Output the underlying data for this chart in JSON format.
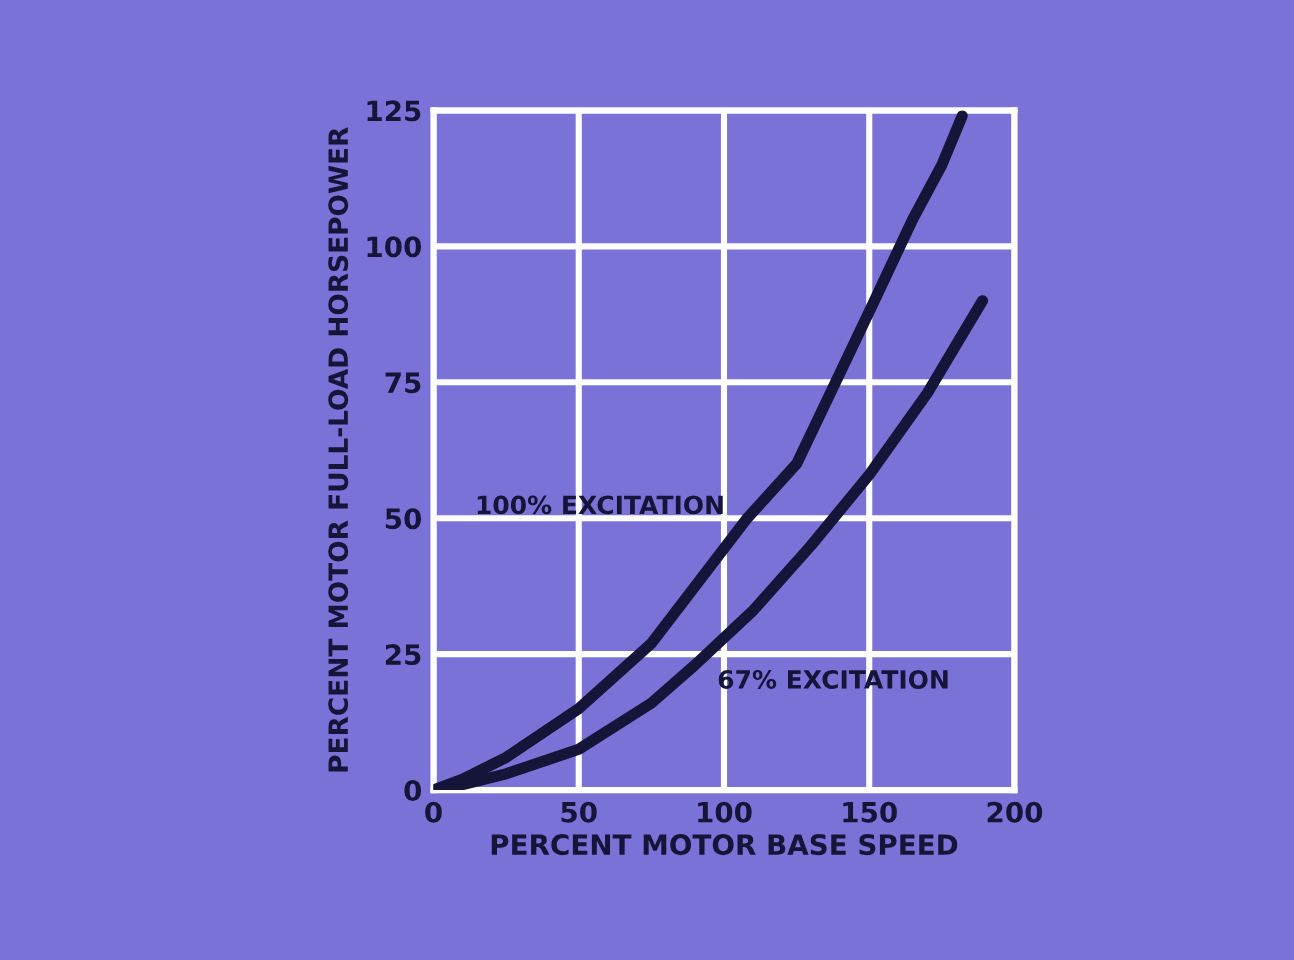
{
  "chart_data": {
    "type": "line",
    "xlabel": "PERCENT MOTOR BASE SPEED",
    "ylabel": "PERCENT MOTOR FULL-LOAD HORSEPOWER",
    "series": [
      {
        "name": "100% EXCITATION",
        "color": "#15153a",
        "x": [
          0,
          10,
          25,
          50,
          75,
          108,
          125,
          150,
          165,
          175,
          182
        ],
        "values": [
          0,
          2,
          6,
          15,
          27,
          50,
          60,
          88,
          105,
          115,
          124
        ]
      },
      {
        "name": "67% EXCITATION",
        "color": "#15153a",
        "x": [
          0,
          10,
          25,
          50,
          75,
          90,
          110,
          130,
          150,
          170,
          189
        ],
        "values": [
          0,
          1,
          3,
          7.5,
          16,
          23,
          33,
          45,
          58,
          73,
          90
        ]
      }
    ],
    "xlim": [
      0,
      200
    ],
    "xticks": [
      0,
      50,
      100,
      150,
      200
    ],
    "ylim": [
      0,
      125
    ],
    "yticks": [
      0,
      25,
      50,
      75,
      100,
      125
    ],
    "grid": true,
    "legend": false,
    "marker": "none",
    "line_style": "solid"
  }
}
